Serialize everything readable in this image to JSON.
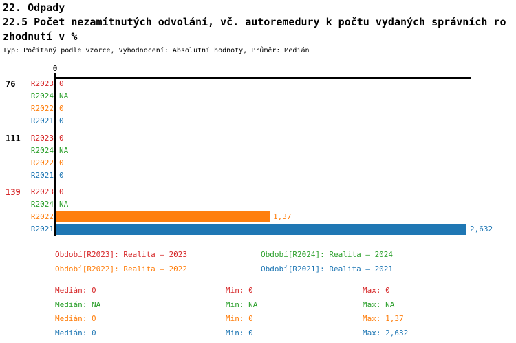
{
  "header": {
    "line1": "22. Odpady",
    "line2": "22.5 Počet nezamítnutých odvolání, vč. autoremedury k počtu vydaných správních ro",
    "line3": "zhodnutí v %",
    "subtitle": "Typ: Počítaný podle vzorce, Vyhodnocení: Absolutní hodnoty, Průměr: Medián"
  },
  "colors": {
    "red": "#d62728",
    "green": "#2ca02c",
    "orange": "#ff7f0e",
    "blue": "#1f77b4",
    "axis": "#000000"
  },
  "chart_data": {
    "type": "bar",
    "orientation": "horizontal",
    "x_axis": {
      "tick_labels": [
        "0"
      ],
      "max": 2.632
    },
    "series_colors": {
      "R2023": "#d62728",
      "R2024": "#2ca02c",
      "R2022": "#ff7f0e",
      "R2021": "#1f77b4"
    },
    "groups": [
      {
        "label": "76",
        "label_color": "#000000",
        "rows": [
          {
            "series": "R2023",
            "color_key": "red",
            "value": 0,
            "display": "0",
            "bar": false
          },
          {
            "series": "R2024",
            "color_key": "green",
            "value": null,
            "display": "NA",
            "bar": false
          },
          {
            "series": "R2022",
            "color_key": "orange",
            "value": 0,
            "display": "0",
            "bar": false
          },
          {
            "series": "R2021",
            "color_key": "blue",
            "value": 0,
            "display": "0",
            "bar": false
          }
        ]
      },
      {
        "label": "111",
        "label_color": "#000000",
        "rows": [
          {
            "series": "R2023",
            "color_key": "red",
            "value": 0,
            "display": "0",
            "bar": false
          },
          {
            "series": "R2024",
            "color_key": "green",
            "value": null,
            "display": "NA",
            "bar": false
          },
          {
            "series": "R2022",
            "color_key": "orange",
            "value": 0,
            "display": "0",
            "bar": false
          },
          {
            "series": "R2021",
            "color_key": "blue",
            "value": 0,
            "display": "0",
            "bar": false
          }
        ]
      },
      {
        "label": "139",
        "label_color": "#d62728",
        "rows": [
          {
            "series": "R2023",
            "color_key": "red",
            "value": 0,
            "display": "0",
            "bar": false
          },
          {
            "series": "R2024",
            "color_key": "green",
            "value": null,
            "display": "NA",
            "bar": false
          },
          {
            "series": "R2022",
            "color_key": "orange",
            "value": 1.37,
            "display": "1,37",
            "bar": true
          },
          {
            "series": "R2021",
            "color_key": "blue",
            "value": 2.632,
            "display": "2,632",
            "bar": true
          }
        ]
      }
    ]
  },
  "legend": {
    "items": [
      {
        "text": "Období[R2023]: Realita – 2023",
        "color_key": "red"
      },
      {
        "text": "Období[R2024]: Realita – 2024",
        "color_key": "green"
      },
      {
        "text": "Období[R2022]: Realita – 2022",
        "color_key": "orange"
      },
      {
        "text": "Období[R2021]: Realita – 2021",
        "color_key": "blue"
      }
    ]
  },
  "stats": {
    "labels": {
      "median": "Medián",
      "min": "Min",
      "max": "Max"
    },
    "rows": [
      {
        "color_key": "red",
        "median": "0",
        "min": "0",
        "max": "0"
      },
      {
        "color_key": "green",
        "median": "NA",
        "min": "NA",
        "max": "NA"
      },
      {
        "color_key": "orange",
        "median": "0",
        "min": "0",
        "max": "1,37"
      },
      {
        "color_key": "blue",
        "median": "0",
        "min": "0",
        "max": "2,632"
      }
    ]
  }
}
